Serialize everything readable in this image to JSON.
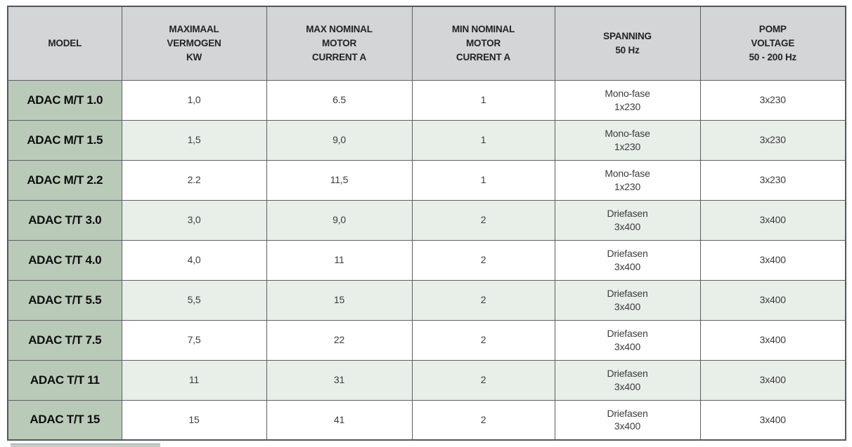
{
  "table": {
    "headers": [
      {
        "id": "model",
        "lines": [
          "MODEL"
        ]
      },
      {
        "id": "max-vermogen",
        "lines": [
          "MAXIMAAL",
          "VERMOGEN",
          "KW"
        ]
      },
      {
        "id": "max-current",
        "lines": [
          "MAX NOMINAL",
          "MOTOR",
          "CURRENT A"
        ]
      },
      {
        "id": "min-current",
        "lines": [
          "MIN NOMINAL",
          "MOTOR",
          "CURRENT A"
        ]
      },
      {
        "id": "spanning",
        "lines": [
          "SPANNING",
          "50 Hz"
        ]
      },
      {
        "id": "pomp-voltage",
        "lines": [
          "POMP",
          "VOLTAGE",
          "50 - 200 Hz"
        ]
      }
    ],
    "rows": [
      {
        "model": "ADAC M/T 1.0",
        "max_vermogen_kw": "1,0",
        "max_nominal_current_a": "6.5",
        "min_nominal_current_a": "1",
        "spanning_50hz": [
          "Mono-fase",
          "1x230"
        ],
        "pomp_voltage": "3x230"
      },
      {
        "model": "ADAC M/T 1.5",
        "max_vermogen_kw": "1,5",
        "max_nominal_current_a": "9,0",
        "min_nominal_current_a": "1",
        "spanning_50hz": [
          "Mono-fase",
          "1x230"
        ],
        "pomp_voltage": "3x230"
      },
      {
        "model": "ADAC M/T 2.2",
        "max_vermogen_kw": "2.2",
        "max_nominal_current_a": "11,5",
        "min_nominal_current_a": "1",
        "spanning_50hz": [
          "Mono-fase",
          "1x230"
        ],
        "pomp_voltage": "3x230"
      },
      {
        "model": "ADAC T/T 3.0",
        "max_vermogen_kw": "3,0",
        "max_nominal_current_a": "9,0",
        "min_nominal_current_a": "2",
        "spanning_50hz": [
          "Driefasen",
          "3x400"
        ],
        "pomp_voltage": "3x400"
      },
      {
        "model": "ADAC T/T 4.0",
        "max_vermogen_kw": "4,0",
        "max_nominal_current_a": "11",
        "min_nominal_current_a": "2",
        "spanning_50hz": [
          "Driefasen",
          "3x400"
        ],
        "pomp_voltage": "3x400"
      },
      {
        "model": "ADAC T/T 5.5",
        "max_vermogen_kw": "5,5",
        "max_nominal_current_a": "15",
        "min_nominal_current_a": "2",
        "spanning_50hz": [
          "Driefasen",
          "3x400"
        ],
        "pomp_voltage": "3x400"
      },
      {
        "model": "ADAC T/T 7.5",
        "max_vermogen_kw": "7,5",
        "max_nominal_current_a": "22",
        "min_nominal_current_a": "2",
        "spanning_50hz": [
          "Driefasen",
          "3x400"
        ],
        "pomp_voltage": "3x400"
      },
      {
        "model": "ADAC T/T 11",
        "max_vermogen_kw": "11",
        "max_nominal_current_a": "31",
        "min_nominal_current_a": "2",
        "spanning_50hz": [
          "Driefasen",
          "3x400"
        ],
        "pomp_voltage": "3x400"
      },
      {
        "model": "ADAC T/T 15",
        "max_vermogen_kw": "15",
        "max_nominal_current_a": "41",
        "min_nominal_current_a": "2",
        "spanning_50hz": [
          "Driefasen",
          "3x400"
        ],
        "pomp_voltage": "3x400"
      }
    ],
    "cell_order": [
      "model",
      "max_vermogen_kw",
      "max_nominal_current_a",
      "min_nominal_current_a",
      "spanning_50hz",
      "pomp_voltage"
    ]
  },
  "colors": {
    "header_bg": "#d3d5d6",
    "model_column_bg": "#b9cab9",
    "alt_row_bg": "#e8eee8",
    "row_bg": "#ffffff",
    "border": "#5c5f61",
    "header_text": "#222324",
    "model_text": "#0c0d0d",
    "cell_text": "#3b3c3d"
  }
}
